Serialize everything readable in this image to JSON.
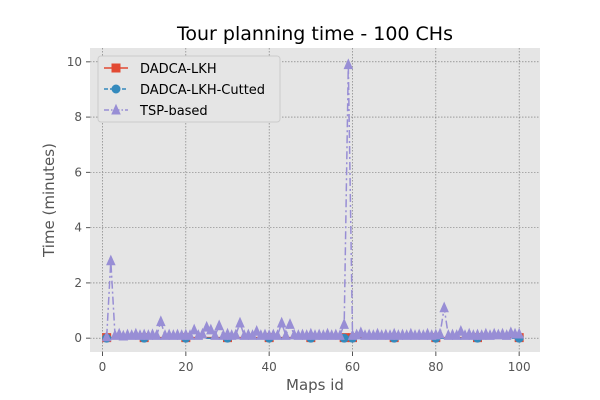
{
  "chart_data": {
    "type": "line",
    "title": "Tour planning time - 100 CHs",
    "xlabel": "Maps id",
    "ylabel": "Time (minutes)",
    "xlim": [
      -3,
      105
    ],
    "ylim": [
      -0.5,
      10.5
    ],
    "xticks": [
      0,
      20,
      40,
      60,
      80,
      100
    ],
    "yticks": [
      0,
      2,
      4,
      6,
      8,
      10
    ],
    "grid": true,
    "legend_position": "top-left",
    "colors": {
      "plot_bg": "#e5e5e5",
      "grid": "#6e6e6e"
    },
    "series": [
      {
        "name": "DADCA-LKH",
        "color": "#e24a33",
        "marker": "square",
        "linestyle": "solid",
        "x": [
          1,
          10,
          20,
          30,
          40,
          50,
          58,
          60,
          70,
          80,
          90,
          100
        ],
        "y": [
          0.02,
          0.02,
          0.02,
          0.02,
          0.02,
          0.02,
          0.02,
          0.02,
          0.02,
          0.02,
          0.02,
          0.02
        ]
      },
      {
        "name": "DADCA-LKH-Cutted",
        "color": "#348abd",
        "marker": "circle",
        "linestyle": "dashed",
        "x": [
          1,
          10,
          20,
          30,
          40,
          50,
          58,
          60,
          70,
          80,
          90,
          100
        ],
        "y": [
          0.0,
          0.0,
          0.0,
          0.0,
          0.0,
          0.0,
          0.0,
          0.0,
          0.0,
          0.0,
          0.0,
          0.0
        ]
      },
      {
        "name": "TSP-based",
        "color": "#988ed5",
        "marker": "triangle",
        "linestyle": "dashdot",
        "x": [
          1,
          2,
          3,
          4,
          5,
          6,
          7,
          8,
          9,
          10,
          11,
          12,
          13,
          14,
          15,
          16,
          17,
          18,
          19,
          20,
          21,
          22,
          23,
          24,
          25,
          26,
          27,
          28,
          29,
          30,
          31,
          32,
          33,
          34,
          35,
          36,
          37,
          38,
          39,
          40,
          41,
          42,
          43,
          44,
          45,
          46,
          47,
          48,
          49,
          50,
          51,
          52,
          53,
          54,
          55,
          56,
          57,
          58,
          59,
          60,
          61,
          62,
          63,
          64,
          65,
          66,
          67,
          68,
          69,
          70,
          71,
          72,
          73,
          74,
          75,
          76,
          77,
          78,
          79,
          80,
          81,
          82,
          83,
          84,
          85,
          86,
          87,
          88,
          89,
          90,
          91,
          92,
          93,
          94,
          95,
          96,
          97,
          98,
          99,
          100
        ],
        "y": [
          0.05,
          2.8,
          0.1,
          0.15,
          0.08,
          0.12,
          0.1,
          0.15,
          0.1,
          0.12,
          0.1,
          0.13,
          0.1,
          0.6,
          0.1,
          0.12,
          0.1,
          0.12,
          0.1,
          0.12,
          0.1,
          0.3,
          0.1,
          0.15,
          0.4,
          0.3,
          0.1,
          0.45,
          0.1,
          0.15,
          0.1,
          0.12,
          0.55,
          0.1,
          0.12,
          0.1,
          0.25,
          0.1,
          0.12,
          0.1,
          0.12,
          0.1,
          0.55,
          0.1,
          0.5,
          0.12,
          0.1,
          0.12,
          0.1,
          0.15,
          0.1,
          0.12,
          0.1,
          0.15,
          0.1,
          0.12,
          0.1,
          0.5,
          9.9,
          0.1,
          0.12,
          0.2,
          0.1,
          0.12,
          0.1,
          0.15,
          0.1,
          0.12,
          0.1,
          0.15,
          0.1,
          0.12,
          0.1,
          0.15,
          0.1,
          0.12,
          0.1,
          0.15,
          0.1,
          0.12,
          0.15,
          1.1,
          0.1,
          0.12,
          0.1,
          0.25,
          0.1,
          0.15,
          0.1,
          0.12,
          0.1,
          0.15,
          0.1,
          0.15,
          0.12,
          0.15,
          0.1,
          0.2,
          0.15,
          0.15
        ]
      }
    ]
  }
}
